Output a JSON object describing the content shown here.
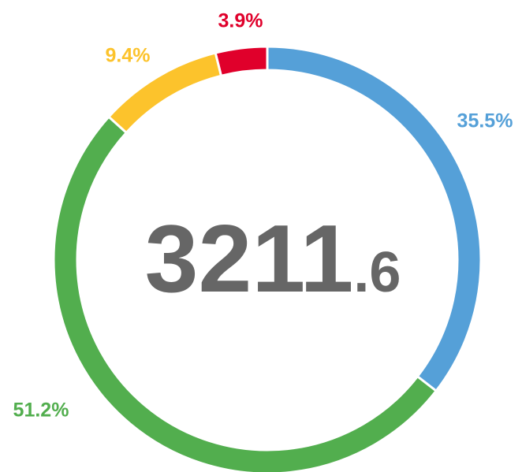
{
  "chart_data": {
    "type": "donut",
    "categories": [
      "blue",
      "green",
      "yellow",
      "red"
    ],
    "values": [
      35.5,
      51.2,
      9.4,
      3.9
    ],
    "value_labels": [
      "35.5%",
      "51.2%",
      "9.4%",
      "3.9%"
    ],
    "colors": [
      "#55a0d8",
      "#52ae4e",
      "#fcc32c",
      "#e0002b"
    ],
    "center_label": {
      "integer": "3211",
      "fraction": ".6"
    }
  }
}
